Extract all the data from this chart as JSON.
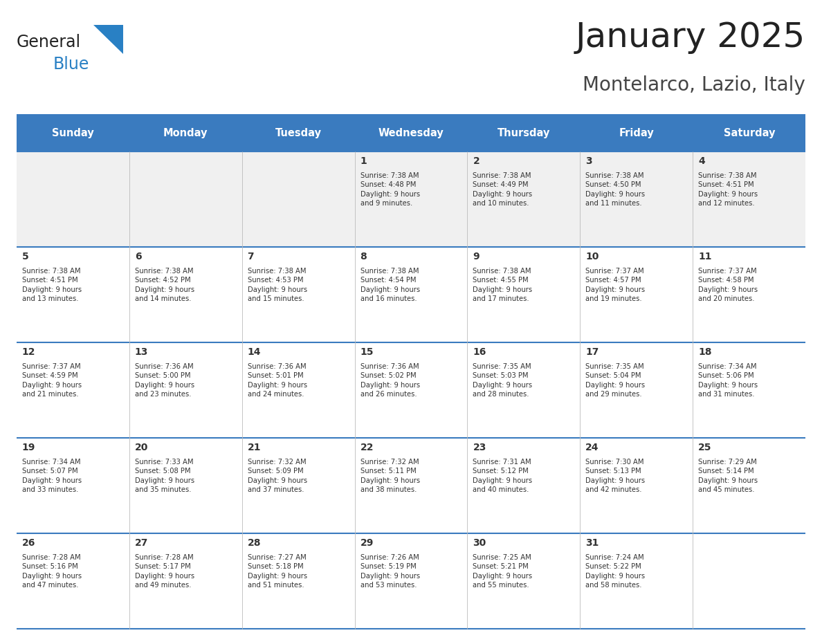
{
  "title": "January 2025",
  "subtitle": "Montelarco, Lazio, Italy",
  "header_bg_color": "#3A7BBF",
  "header_text_color": "#FFFFFF",
  "days_of_week": [
    "Sunday",
    "Monday",
    "Tuesday",
    "Wednesday",
    "Thursday",
    "Friday",
    "Saturday"
  ],
  "title_font_size": 36,
  "subtitle_font_size": 20,
  "bg_color": "#FFFFFF",
  "row_alt_color": "#F0F0F0",
  "cell_text_color": "#333333",
  "day_num_color": "#333333",
  "logo_general_color": "#222222",
  "logo_blue_color": "#2980C4",
  "grid_color": "#3A7BBF",
  "sep_color": "#BBBBBB",
  "calendar_data": [
    [
      null,
      null,
      null,
      {
        "day": 1,
        "sunrise": "7:38 AM",
        "sunset": "4:48 PM",
        "daylight": "9 hours and 9 minutes."
      },
      {
        "day": 2,
        "sunrise": "7:38 AM",
        "sunset": "4:49 PM",
        "daylight": "9 hours and 10 minutes."
      },
      {
        "day": 3,
        "sunrise": "7:38 AM",
        "sunset": "4:50 PM",
        "daylight": "9 hours and 11 minutes."
      },
      {
        "day": 4,
        "sunrise": "7:38 AM",
        "sunset": "4:51 PM",
        "daylight": "9 hours and 12 minutes."
      }
    ],
    [
      {
        "day": 5,
        "sunrise": "7:38 AM",
        "sunset": "4:51 PM",
        "daylight": "9 hours and 13 minutes."
      },
      {
        "day": 6,
        "sunrise": "7:38 AM",
        "sunset": "4:52 PM",
        "daylight": "9 hours and 14 minutes."
      },
      {
        "day": 7,
        "sunrise": "7:38 AM",
        "sunset": "4:53 PM",
        "daylight": "9 hours and 15 minutes."
      },
      {
        "day": 8,
        "sunrise": "7:38 AM",
        "sunset": "4:54 PM",
        "daylight": "9 hours and 16 minutes."
      },
      {
        "day": 9,
        "sunrise": "7:38 AM",
        "sunset": "4:55 PM",
        "daylight": "9 hours and 17 minutes."
      },
      {
        "day": 10,
        "sunrise": "7:37 AM",
        "sunset": "4:57 PM",
        "daylight": "9 hours and 19 minutes."
      },
      {
        "day": 11,
        "sunrise": "7:37 AM",
        "sunset": "4:58 PM",
        "daylight": "9 hours and 20 minutes."
      }
    ],
    [
      {
        "day": 12,
        "sunrise": "7:37 AM",
        "sunset": "4:59 PM",
        "daylight": "9 hours and 21 minutes."
      },
      {
        "day": 13,
        "sunrise": "7:36 AM",
        "sunset": "5:00 PM",
        "daylight": "9 hours and 23 minutes."
      },
      {
        "day": 14,
        "sunrise": "7:36 AM",
        "sunset": "5:01 PM",
        "daylight": "9 hours and 24 minutes."
      },
      {
        "day": 15,
        "sunrise": "7:36 AM",
        "sunset": "5:02 PM",
        "daylight": "9 hours and 26 minutes."
      },
      {
        "day": 16,
        "sunrise": "7:35 AM",
        "sunset": "5:03 PM",
        "daylight": "9 hours and 28 minutes."
      },
      {
        "day": 17,
        "sunrise": "7:35 AM",
        "sunset": "5:04 PM",
        "daylight": "9 hours and 29 minutes."
      },
      {
        "day": 18,
        "sunrise": "7:34 AM",
        "sunset": "5:06 PM",
        "daylight": "9 hours and 31 minutes."
      }
    ],
    [
      {
        "day": 19,
        "sunrise": "7:34 AM",
        "sunset": "5:07 PM",
        "daylight": "9 hours and 33 minutes."
      },
      {
        "day": 20,
        "sunrise": "7:33 AM",
        "sunset": "5:08 PM",
        "daylight": "9 hours and 35 minutes."
      },
      {
        "day": 21,
        "sunrise": "7:32 AM",
        "sunset": "5:09 PM",
        "daylight": "9 hours and 37 minutes."
      },
      {
        "day": 22,
        "sunrise": "7:32 AM",
        "sunset": "5:11 PM",
        "daylight": "9 hours and 38 minutes."
      },
      {
        "day": 23,
        "sunrise": "7:31 AM",
        "sunset": "5:12 PM",
        "daylight": "9 hours and 40 minutes."
      },
      {
        "day": 24,
        "sunrise": "7:30 AM",
        "sunset": "5:13 PM",
        "daylight": "9 hours and 42 minutes."
      },
      {
        "day": 25,
        "sunrise": "7:29 AM",
        "sunset": "5:14 PM",
        "daylight": "9 hours and 45 minutes."
      }
    ],
    [
      {
        "day": 26,
        "sunrise": "7:28 AM",
        "sunset": "5:16 PM",
        "daylight": "9 hours and 47 minutes."
      },
      {
        "day": 27,
        "sunrise": "7:28 AM",
        "sunset": "5:17 PM",
        "daylight": "9 hours and 49 minutes."
      },
      {
        "day": 28,
        "sunrise": "7:27 AM",
        "sunset": "5:18 PM",
        "daylight": "9 hours and 51 minutes."
      },
      {
        "day": 29,
        "sunrise": "7:26 AM",
        "sunset": "5:19 PM",
        "daylight": "9 hours and 53 minutes."
      },
      {
        "day": 30,
        "sunrise": "7:25 AM",
        "sunset": "5:21 PM",
        "daylight": "9 hours and 55 minutes."
      },
      {
        "day": 31,
        "sunrise": "7:24 AM",
        "sunset": "5:22 PM",
        "daylight": "9 hours and 58 minutes."
      },
      null
    ]
  ]
}
